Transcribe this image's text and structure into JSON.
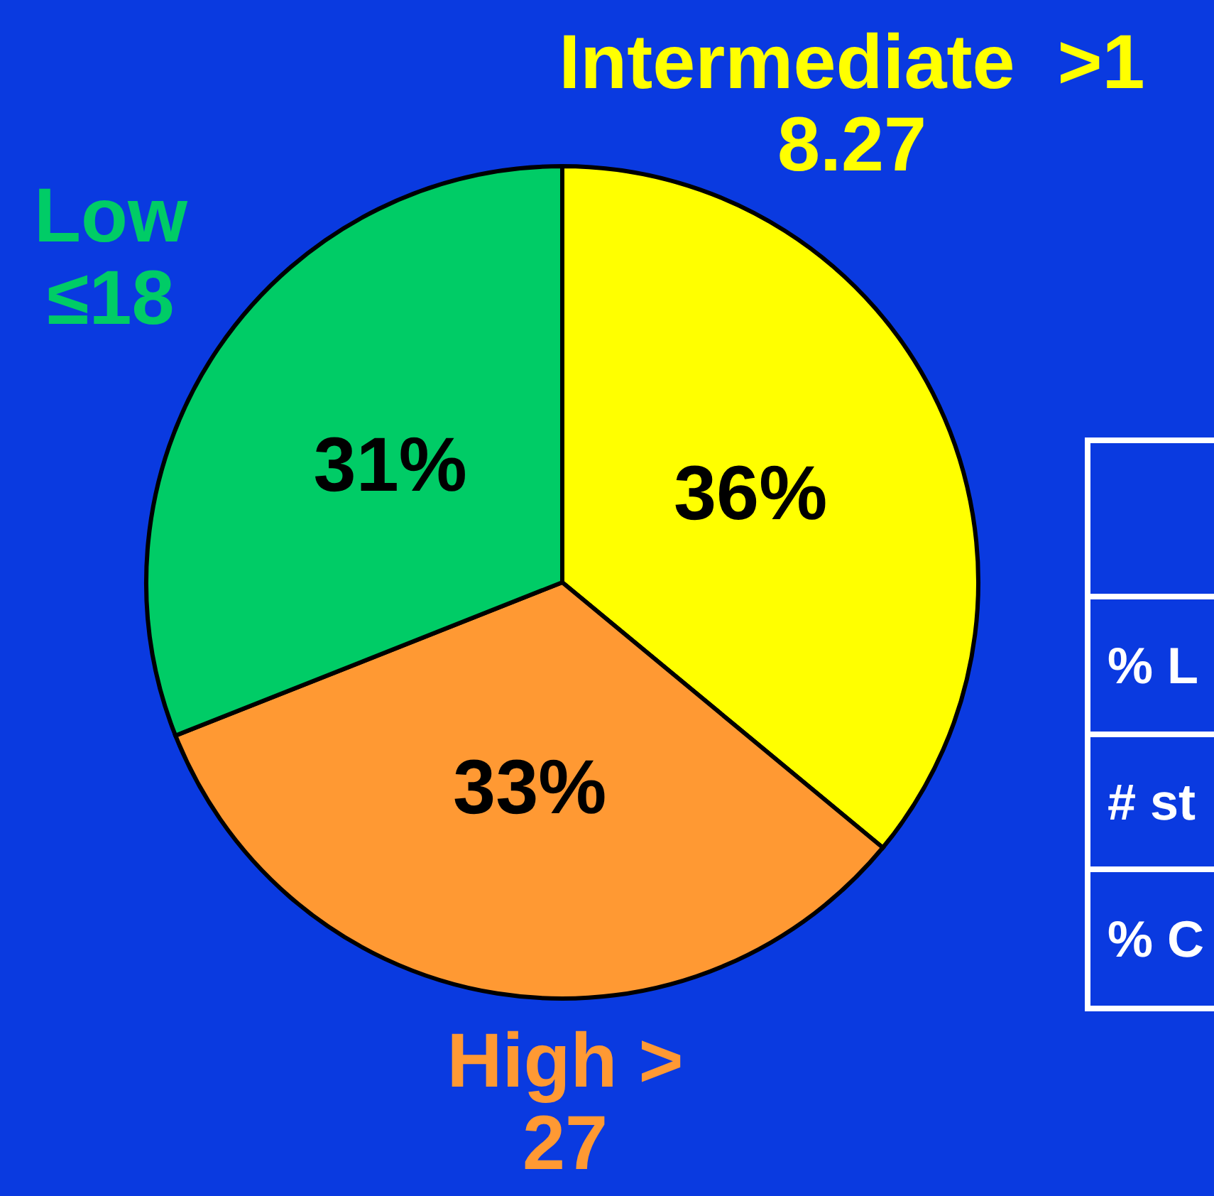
{
  "chart_data": [
    {
      "type": "pie",
      "categories": [
        "Intermediate  >1\n8.27",
        "High >\n27",
        "Low\n≤18"
      ],
      "values": [
        36,
        33,
        31
      ],
      "colors": [
        "#ffff00",
        "#ff9933",
        "#00cc66"
      ],
      "value_labels": [
        "36%",
        "33%",
        "31%"
      ]
    },
    {
      "type": "other",
      "annotations": [
        "% L",
        "# st",
        "% C"
      ]
    }
  ]
}
